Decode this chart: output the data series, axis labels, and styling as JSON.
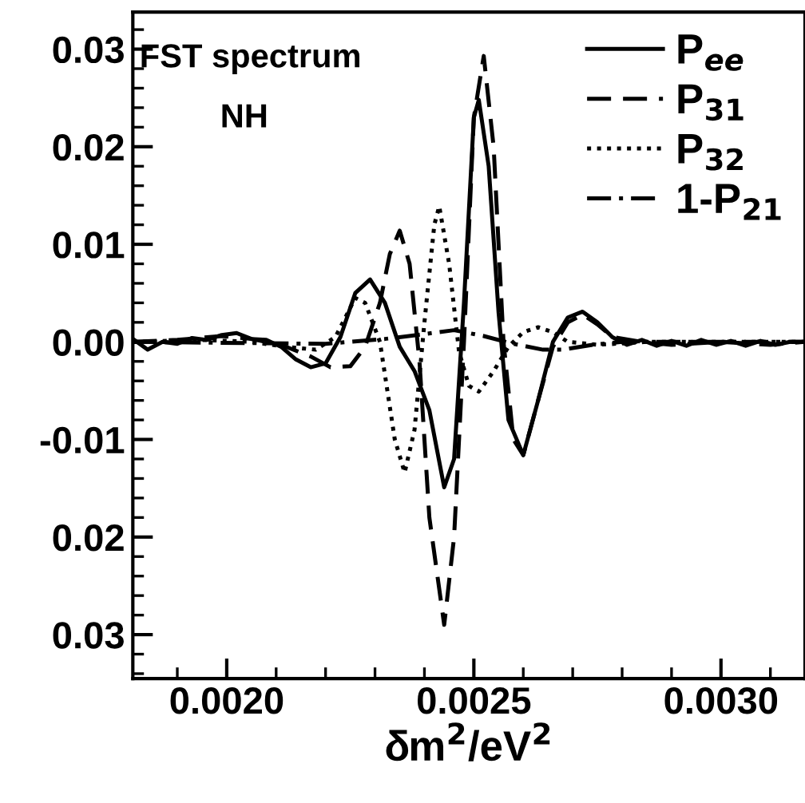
{
  "chart_data": {
    "type": "line",
    "xlabel": "δm$^{2}$/eV$^{2}$",
    "annotations": [
      "FST spectrum",
      "NH"
    ],
    "xlim": [
      0.00181,
      0.00317
    ],
    "xticks": [
      {
        "value": 0.002,
        "label": "0.0020"
      },
      {
        "value": 0.0025,
        "label": "0.0025"
      },
      {
        "value": 0.003,
        "label": "0.0030"
      }
    ],
    "ylim": [
      -0.0345,
      0.0338
    ],
    "yticks": [
      {
        "value": -0.03,
        "label": "0.03"
      },
      {
        "value": -0.02,
        "label": "0.02"
      },
      {
        "value": -0.01,
        "label": "-0.01"
      },
      {
        "value": 0.0,
        "label": "0.00"
      },
      0.01,
      0.02,
      0.03
    ],
    "legend": "top right",
    "grid": false,
    "series": [
      {
        "name": "P$_{ee}$",
        "color": "#000000",
        "line_style": "solid",
        "x": [
          0.00181,
          0.00184,
          0.00187,
          0.0019,
          0.00193,
          0.00196,
          0.00199,
          0.00202,
          0.00205,
          0.00208,
          0.00211,
          0.00214,
          0.00217,
          0.0022,
          0.00223,
          0.00226,
          0.00229,
          0.00232,
          0.00235,
          0.00238,
          0.00241,
          0.00244,
          0.00246,
          0.00248,
          0.0025,
          0.00251,
          0.00253,
          0.00255,
          0.00257,
          0.0026,
          0.00263,
          0.00266,
          0.00269,
          0.00272,
          0.00275,
          0.00278,
          0.00281,
          0.00284,
          0.00287,
          0.0029,
          0.00293,
          0.00296,
          0.00299,
          0.00302,
          0.00305,
          0.00308,
          0.00311,
          0.00314,
          0.00317
        ],
        "values": [
          0.0003,
          -0.0008,
          0.0,
          -0.0002,
          0.0004,
          0.0002,
          0.0007,
          0.0009,
          0.0003,
          0.0002,
          -0.0005,
          -0.0018,
          -0.0026,
          -0.0022,
          0.0005,
          0.005,
          0.0064,
          0.004,
          -0.0005,
          -0.003,
          -0.007,
          -0.0149,
          -0.012,
          0.004,
          0.023,
          0.0248,
          0.018,
          0.003,
          -0.008,
          -0.0116,
          -0.006,
          0.0,
          0.0025,
          0.0031,
          0.002,
          0.0005,
          -0.0003,
          0.0002,
          -0.0004,
          0.0001,
          -0.0004,
          0.0002,
          -0.0003,
          0.0001,
          -0.0004,
          0.0001,
          -0.0003,
          0.0,
          0.0
        ]
      },
      {
        "name": "P$_{31}$",
        "color": "#000000",
        "line_style": "dashed",
        "x": [
          0.00181,
          0.0019,
          0.00199,
          0.00205,
          0.00211,
          0.00217,
          0.00221,
          0.00225,
          0.00228,
          0.00231,
          0.00233,
          0.00235,
          0.00237,
          0.00239,
          0.00241,
          0.00244,
          0.00246,
          0.00248,
          0.0025,
          0.00252,
          0.00254,
          0.00256,
          0.00258,
          0.0026,
          0.00263,
          0.00266,
          0.00269,
          0.00272,
          0.00275,
          0.00278,
          0.00284,
          0.0029,
          0.003,
          0.0031,
          0.00317
        ],
        "values": [
          0.0,
          0.0002,
          0.0006,
          0.0003,
          -0.0003,
          -0.0015,
          -0.0026,
          -0.0025,
          -0.0005,
          0.004,
          0.009,
          0.0114,
          0.008,
          -0.002,
          -0.018,
          -0.029,
          -0.02,
          0.0,
          0.023,
          0.0293,
          0.02,
          0.0,
          -0.01,
          -0.0116,
          -0.006,
          -0.0005,
          0.002,
          0.0028,
          0.0018,
          0.0005,
          0.0,
          -0.0003,
          0.0,
          -0.0003,
          0.0
        ]
      },
      {
        "name": "P$_{32}$",
        "color": "#000000",
        "line_style": "dotted",
        "x": [
          0.00181,
          0.00195,
          0.00205,
          0.00212,
          0.00218,
          0.00222,
          0.00226,
          0.00228,
          0.00231,
          0.00234,
          0.00236,
          0.00238,
          0.0024,
          0.00242,
          0.00243,
          0.00245,
          0.00247,
          0.00249,
          0.00251,
          0.00254,
          0.00257,
          0.0026,
          0.00263,
          0.00266,
          0.00269,
          0.00275,
          0.00285,
          0.00317
        ],
        "values": [
          0.0,
          0.0002,
          0.0,
          -0.0005,
          -0.0008,
          0.0005,
          0.0045,
          0.004,
          0.0,
          -0.01,
          -0.0134,
          -0.009,
          0.002,
          0.012,
          0.0139,
          0.008,
          -0.001,
          -0.0045,
          -0.0051,
          -0.003,
          -0.0005,
          0.001,
          0.0015,
          0.001,
          0.0,
          -0.0003,
          0.0,
          0.0
        ]
      },
      {
        "name": "1-P$_{21}$",
        "color": "#000000",
        "line_style": "dashdot",
        "x": [
          0.00181,
          0.0022,
          0.00232,
          0.0024,
          0.00246,
          0.00252,
          0.00258,
          0.00264,
          0.00268,
          0.00274,
          0.0028,
          0.00317
        ],
        "values": [
          0.0,
          -0.0002,
          0.0003,
          0.0008,
          0.0012,
          0.0006,
          -0.0002,
          -0.0008,
          -0.0008,
          -0.0003,
          0.0,
          0.0
        ]
      }
    ]
  }
}
